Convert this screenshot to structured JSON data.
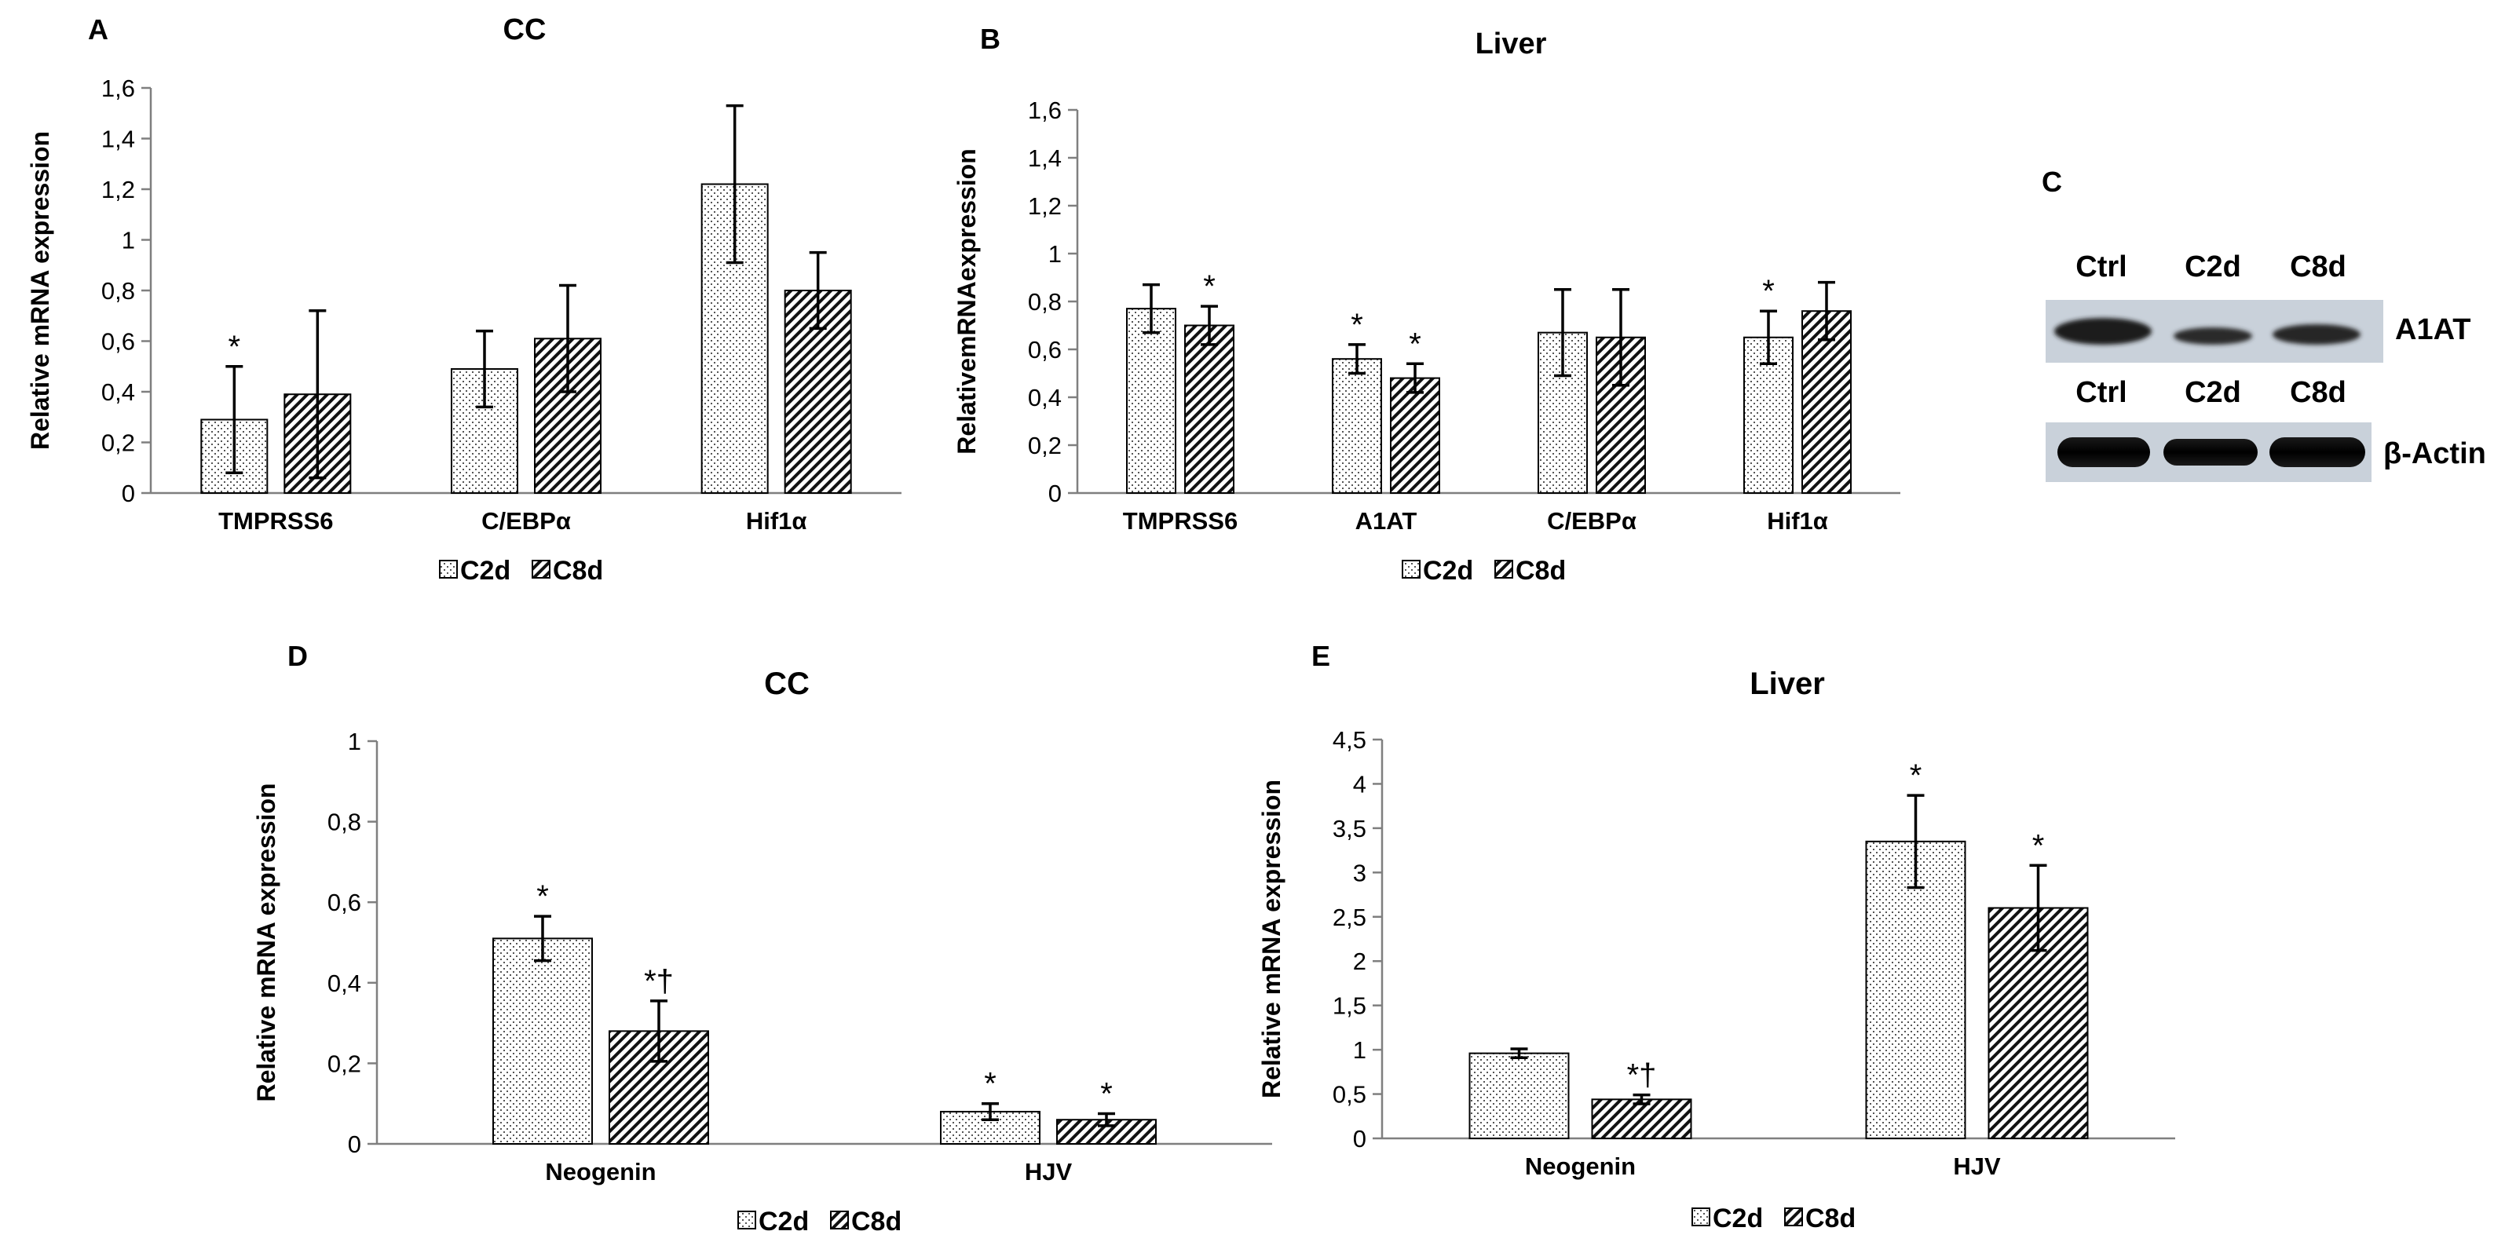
{
  "colors": {
    "axis": "#7f7f7f",
    "bar_stroke": "#000000",
    "error": "#000000",
    "text": "#000000"
  },
  "legend": {
    "series": [
      "C2d",
      "C8d"
    ]
  },
  "chart_data": [
    {
      "id": "A",
      "type": "bar",
      "panel_label": "A",
      "title": "CC",
      "ylabel": "Relative mRNA expression",
      "xlabel": "",
      "ylim": [
        0,
        1.6
      ],
      "yticks": [
        "0",
        "0,2",
        "0,4",
        "0,6",
        "0,8",
        "1",
        "1,2",
        "1,4",
        "1,6"
      ],
      "categories": [
        "TMPRSS6",
        "C/EBPα",
        "Hif1α"
      ],
      "series": [
        {
          "name": "C2d",
          "values": [
            0.29,
            0.49,
            1.22
          ],
          "errors": [
            0.21,
            0.15,
            0.31
          ],
          "marks": [
            "*",
            "",
            ""
          ]
        },
        {
          "name": "C8d",
          "values": [
            0.39,
            0.61,
            0.8
          ],
          "errors": [
            0.33,
            0.21,
            0.15
          ],
          "marks": [
            "",
            "",
            ""
          ]
        }
      ]
    },
    {
      "id": "B",
      "type": "bar",
      "panel_label": "B",
      "title": "Liver",
      "ylabel": "RelativemRNAexpression",
      "xlabel": "",
      "ylim": [
        0,
        1.6
      ],
      "yticks": [
        "0",
        "0,2",
        "0,4",
        "0,6",
        "0,8",
        "1",
        "1,2",
        "1,4",
        "1,6"
      ],
      "categories": [
        "TMPRSS6",
        "A1AT",
        "C/EBPα",
        "Hif1α"
      ],
      "series": [
        {
          "name": "C2d",
          "values": [
            0.77,
            0.56,
            0.67,
            0.65
          ],
          "errors": [
            0.1,
            0.06,
            0.18,
            0.11
          ],
          "marks": [
            "",
            "*",
            "",
            "*"
          ]
        },
        {
          "name": "C8d",
          "values": [
            0.7,
            0.48,
            0.65,
            0.76
          ],
          "errors": [
            0.08,
            0.06,
            0.2,
            0.12
          ],
          "marks": [
            "*",
            "*",
            "",
            ""
          ]
        }
      ]
    },
    {
      "id": "D",
      "type": "bar",
      "panel_label": "D",
      "title": "CC",
      "ylabel": "Relative mRNA expression",
      "xlabel": "",
      "ylim": [
        0,
        1
      ],
      "yticks": [
        "0",
        "0,2",
        "0,4",
        "0,6",
        "0,8",
        "1"
      ],
      "categories": [
        "Neogenin",
        "HJV"
      ],
      "series": [
        {
          "name": "C2d",
          "values": [
            0.51,
            0.08
          ],
          "errors": [
            0.055,
            0.02
          ],
          "marks": [
            "*",
            "*"
          ]
        },
        {
          "name": "C8d",
          "values": [
            0.28,
            0.06
          ],
          "errors": [
            0.075,
            0.015
          ],
          "marks": [
            "*†",
            "*"
          ]
        }
      ]
    },
    {
      "id": "E",
      "type": "bar",
      "panel_label": "E",
      "title": "Liver",
      "ylabel": "Relative mRNA expression",
      "xlabel": "",
      "ylim": [
        0,
        4.5
      ],
      "yticks": [
        "0",
        "0,5",
        "1",
        "1,5",
        "2",
        "2,5",
        "3",
        "3,5",
        "4",
        "4,5"
      ],
      "categories": [
        "Neogenin",
        "HJV"
      ],
      "series": [
        {
          "name": "C2d",
          "values": [
            0.96,
            3.35
          ],
          "errors": [
            0.05,
            0.52
          ],
          "marks": [
            "",
            "*"
          ]
        },
        {
          "name": "C8d",
          "values": [
            0.44,
            2.6
          ],
          "errors": [
            0.05,
            0.48
          ],
          "marks": [
            "*†",
            "*"
          ]
        }
      ]
    }
  ],
  "blot": {
    "panel_label": "C",
    "rows": [
      {
        "lanes": [
          "Ctrl",
          "C2d",
          "C8d"
        ],
        "protein": "A1AT"
      },
      {
        "lanes": [
          "Ctrl",
          "C2d",
          "C8d"
        ],
        "protein": "β-Actin"
      }
    ]
  }
}
